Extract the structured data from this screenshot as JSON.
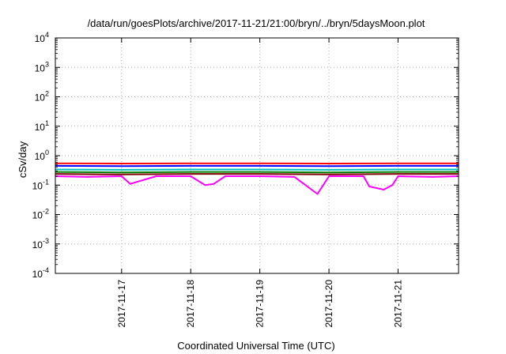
{
  "chart_data": {
    "type": "line",
    "title": "/data/run/goesPlots/archive/2017-11-21/21:00/bryn/../bryn/5daysMoon.plot",
    "xlabel": "Coordinated Universal Time (UTC)",
    "ylabel": "cSv/day",
    "y_scale": "log",
    "ylim": [
      0.0001,
      10000
    ],
    "xlim": [
      "2017-11-16 01:00",
      "2017-11-21 21:00"
    ],
    "y_ticks": [
      {
        "mantissa": "10",
        "exp": "-4",
        "value": 0.0001
      },
      {
        "mantissa": "10",
        "exp": "-3",
        "value": 0.001
      },
      {
        "mantissa": "10",
        "exp": "-2",
        "value": 0.01
      },
      {
        "mantissa": "10",
        "exp": "-1",
        "value": 0.1
      },
      {
        "mantissa": "10",
        "exp": "0",
        "value": 1
      },
      {
        "mantissa": "10",
        "exp": "1",
        "value": 10
      },
      {
        "mantissa": "10",
        "exp": "2",
        "value": 100
      },
      {
        "mantissa": "10",
        "exp": "3",
        "value": 1000
      },
      {
        "mantissa": "10",
        "exp": "4",
        "value": 10000
      }
    ],
    "x_ticks": [
      "2017-11-17",
      "2017-11-18",
      "2017-11-19",
      "2017-11-20",
      "2017-11-21"
    ],
    "grid": true,
    "legend": "none",
    "series": [
      {
        "color": "#ff00ff",
        "x": [
          "2017-11-16 01:00",
          "2017-11-16 12:00",
          "2017-11-17 00:00",
          "2017-11-17 03:00",
          "2017-11-17 12:00",
          "2017-11-18 00:00",
          "2017-11-18 05:00",
          "2017-11-18 08:00",
          "2017-11-18 12:00",
          "2017-11-19 00:00",
          "2017-11-19 12:00",
          "2017-11-19 20:00",
          "2017-11-20 00:00",
          "2017-11-20 12:00",
          "2017-11-20 14:00",
          "2017-11-20 19:00",
          "2017-11-20 22:00",
          "2017-11-21 00:00",
          "2017-11-21 12:00",
          "2017-11-21 21:00"
        ],
        "y": [
          0.2,
          0.19,
          0.2,
          0.11,
          0.2,
          0.2,
          0.1,
          0.11,
          0.2,
          0.2,
          0.19,
          0.05,
          0.2,
          0.2,
          0.09,
          0.07,
          0.1,
          0.2,
          0.19,
          0.2
        ]
      },
      {
        "color": "#800000",
        "x": [
          "2017-11-16 01:00",
          "2017-11-17 00:00",
          "2017-11-18 00:00",
          "2017-11-19 00:00",
          "2017-11-20 00:00",
          "2017-11-21 00:00",
          "2017-11-21 21:00"
        ],
        "y": [
          0.24,
          0.23,
          0.24,
          0.24,
          0.23,
          0.24,
          0.24
        ]
      },
      {
        "color": "#008000",
        "x": [
          "2017-11-16 01:00",
          "2017-11-17 00:00",
          "2017-11-18 00:00",
          "2017-11-19 00:00",
          "2017-11-20 00:00",
          "2017-11-21 00:00",
          "2017-11-21 21:00"
        ],
        "y": [
          0.28,
          0.27,
          0.28,
          0.28,
          0.27,
          0.28,
          0.28
        ]
      },
      {
        "color": "#00c0c0",
        "x": [
          "2017-11-16 01:00",
          "2017-11-17 00:00",
          "2017-11-18 00:00",
          "2017-11-19 00:00",
          "2017-11-20 00:00",
          "2017-11-21 00:00",
          "2017-11-21 21:00"
        ],
        "y": [
          0.34,
          0.33,
          0.34,
          0.34,
          0.33,
          0.34,
          0.34
        ]
      },
      {
        "color": "#0000ff",
        "x": [
          "2017-11-16 01:00",
          "2017-11-17 00:00",
          "2017-11-18 00:00",
          "2017-11-19 00:00",
          "2017-11-20 00:00",
          "2017-11-21 00:00",
          "2017-11-21 21:00"
        ],
        "y": [
          0.45,
          0.44,
          0.45,
          0.45,
          0.44,
          0.45,
          0.45
        ]
      },
      {
        "color": "#ff0000",
        "x": [
          "2017-11-16 01:00",
          "2017-11-17 00:00",
          "2017-11-18 00:00",
          "2017-11-19 00:00",
          "2017-11-20 00:00",
          "2017-11-21 00:00",
          "2017-11-21 21:00"
        ],
        "y": [
          0.55,
          0.54,
          0.55,
          0.55,
          0.54,
          0.55,
          0.55
        ]
      }
    ]
  }
}
